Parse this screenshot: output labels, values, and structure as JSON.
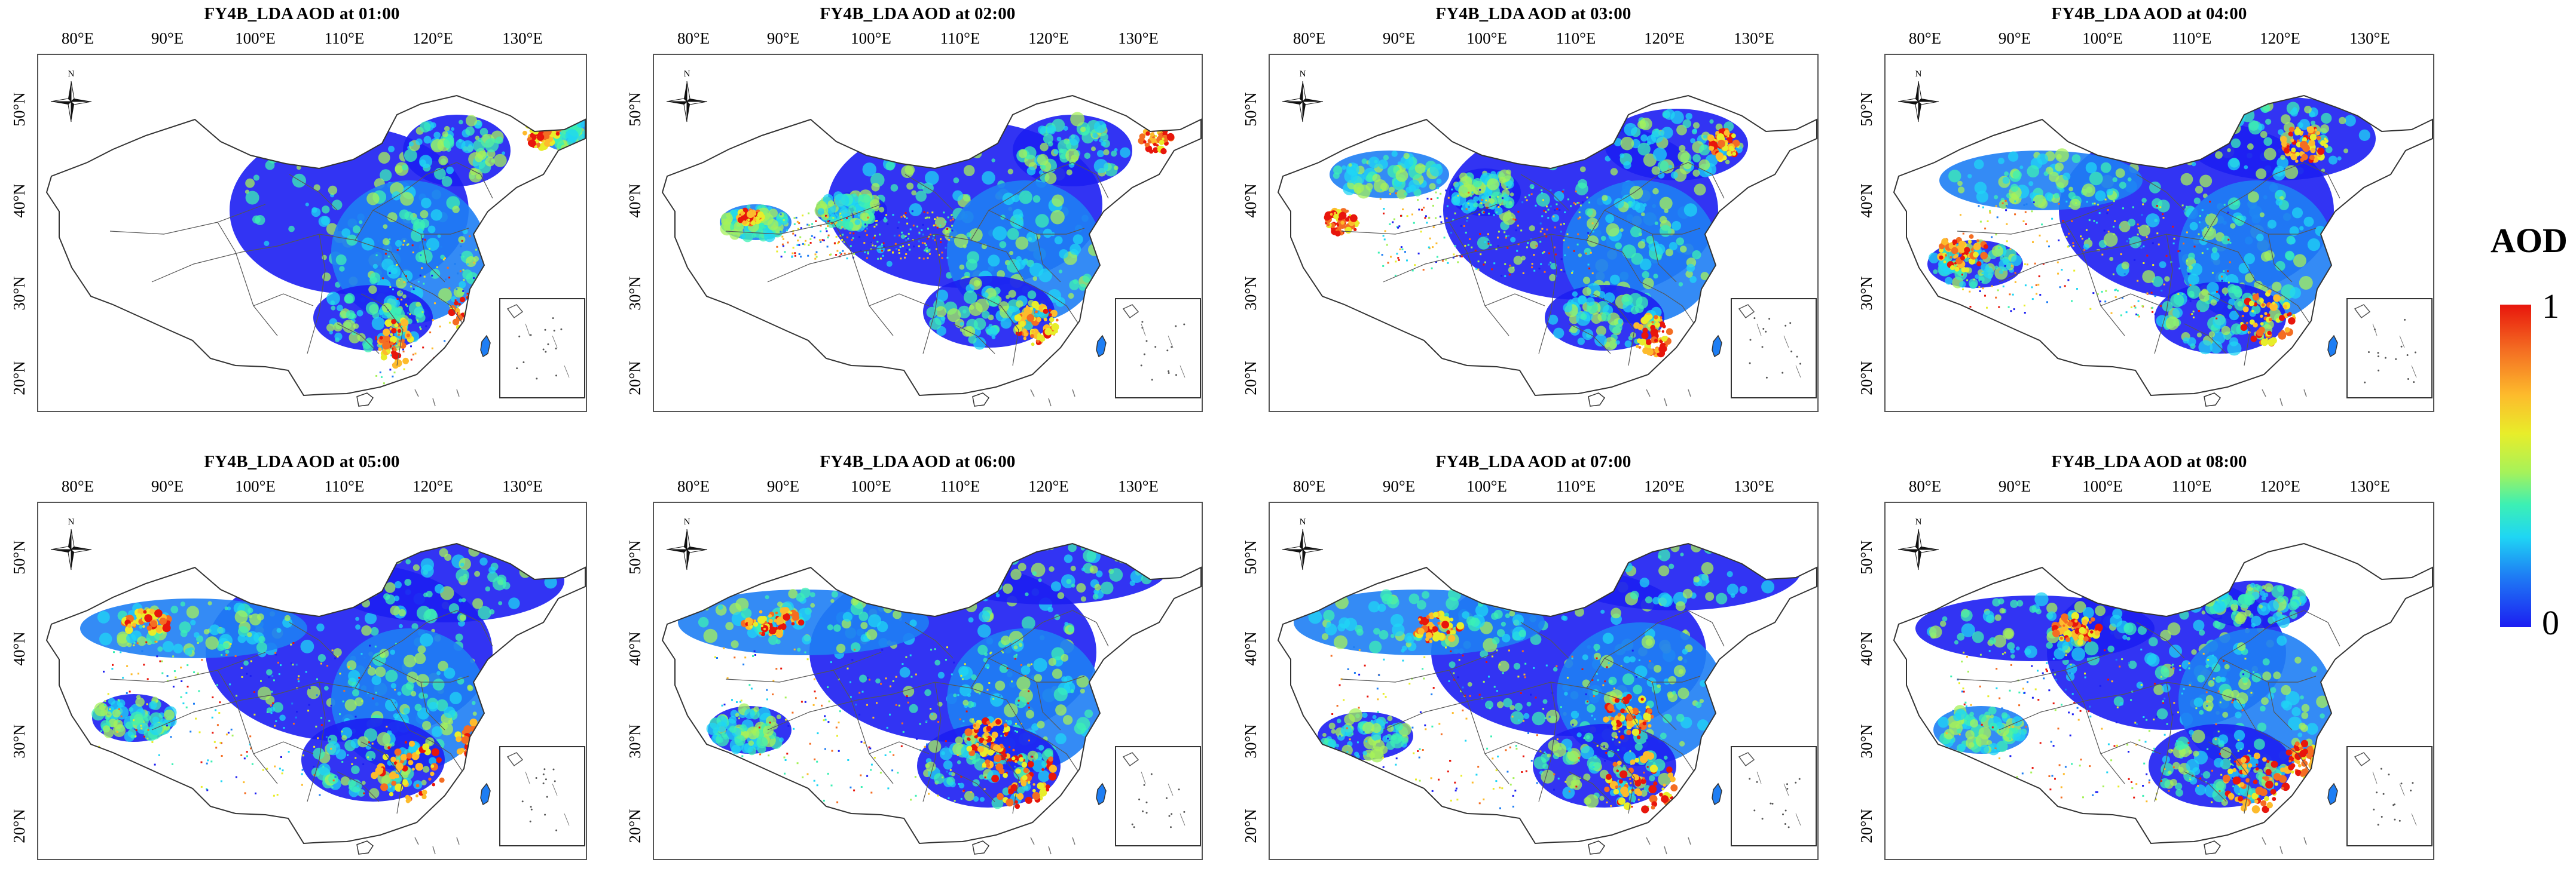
{
  "figure": {
    "panels": [
      {
        "title": "FY4B_LDA AOD at 01:00"
      },
      {
        "title": "FY4B_LDA AOD at 02:00"
      },
      {
        "title": "FY4B_LDA AOD at 03:00"
      },
      {
        "title": "FY4B_LDA AOD at 04:00"
      },
      {
        "title": "FY4B_LDA AOD at 05:00"
      },
      {
        "title": "FY4B_LDA AOD at 06:00"
      },
      {
        "title": "FY4B_LDA AOD at 07:00"
      },
      {
        "title": "FY4B_LDA AOD at 08:00"
      }
    ],
    "x_ticks": [
      "80°E",
      "90°E",
      "100°E",
      "110°E",
      "120°E",
      "130°E"
    ],
    "y_ticks": [
      "50°N",
      "40°N",
      "30°N",
      "20°N"
    ],
    "compass_label": "N",
    "colorbar": {
      "title": "AOD",
      "max_label": "1",
      "min_label": "0",
      "colors": [
        "#1c1ef2",
        "#1e7ef4",
        "#1fd6f4",
        "#3cf0b4",
        "#a6f25a",
        "#e8ed2a",
        "#fdbb2c",
        "#f46d22",
        "#e8160c"
      ]
    }
  }
}
